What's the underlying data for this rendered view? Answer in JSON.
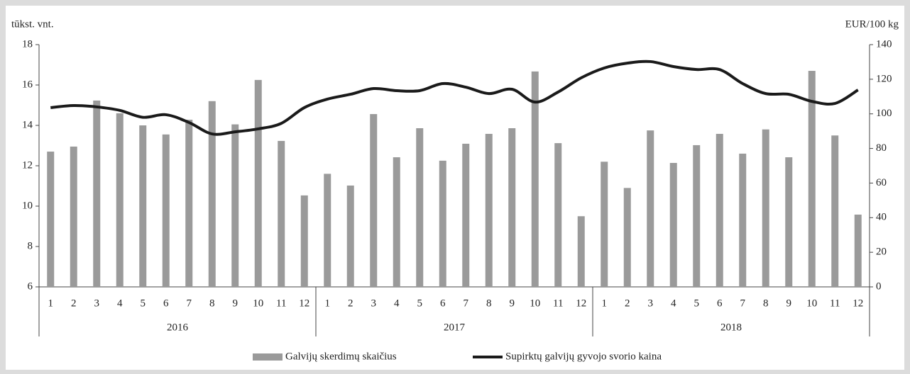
{
  "chart_data": {
    "type": "bar_line",
    "y_label": "tūkst. vnt.",
    "y2_label": "EUR/100 kg",
    "categories": [
      "1",
      "2",
      "3",
      "4",
      "5",
      "6",
      "7",
      "8",
      "9",
      "10",
      "11",
      "12",
      "1",
      "2",
      "3",
      "4",
      "5",
      "6",
      "7",
      "8",
      "9",
      "10",
      "11",
      "12",
      "1",
      "2",
      "3",
      "4",
      "5",
      "6",
      "7",
      "8",
      "9",
      "10",
      "11",
      "12"
    ],
    "years": [
      "2016",
      "2017",
      "2018"
    ],
    "ylim": [
      6,
      18
    ],
    "yticks": [
      6,
      8,
      10,
      12,
      14,
      16,
      18
    ],
    "y2lim": [
      0,
      140
    ],
    "y2ticks": [
      0,
      20,
      40,
      60,
      80,
      100,
      120,
      140
    ],
    "series": [
      {
        "name": "Galvijų skerdimų skaičius",
        "type": "bar",
        "color": "#9a9a9a",
        "values": [
          12.7,
          12.95,
          15.23,
          14.6,
          14.0,
          13.55,
          14.28,
          15.2,
          14.05,
          16.25,
          13.23,
          10.53,
          11.6,
          11.02,
          14.56,
          12.42,
          13.86,
          12.25,
          13.09,
          13.58,
          13.86,
          16.67,
          13.12,
          9.5,
          12.2,
          10.9,
          13.75,
          12.14,
          13.02,
          13.58,
          12.6,
          13.8,
          12.42,
          16.7,
          13.5,
          9.58
        ]
      },
      {
        "name": "Supirktų galvijų gyvojo svorio kaina",
        "type": "line",
        "color": "#1a1a1a",
        "axis": "y2",
        "values": [
          103.6,
          104.8,
          104,
          102,
          98,
          99.5,
          95,
          88.4,
          89.6,
          91.3,
          94.5,
          103.6,
          108.5,
          111.3,
          114.6,
          113.4,
          113.4,
          117.5,
          115.4,
          111.7,
          114.2,
          106.8,
          112.6,
          120.8,
          126.5,
          129.3,
          130.2,
          127.3,
          125.6,
          125.6,
          117.5,
          111.7,
          111.3,
          107.2,
          106,
          113.8
        ]
      }
    ]
  }
}
